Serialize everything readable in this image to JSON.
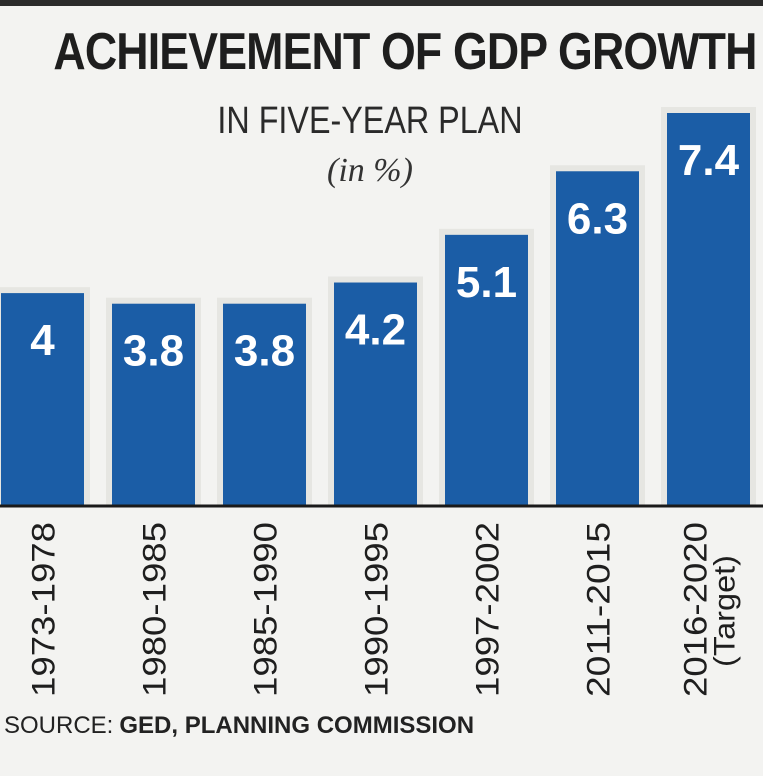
{
  "chart_data": {
    "type": "bar",
    "title": "ACHIEVEMENT OF GDP GROWTH",
    "subtitle": "IN FIVE-YEAR PLAN",
    "unit": "(in %)",
    "categories": [
      "1973-1978",
      "1980-1985",
      "1985-1990",
      "1990-1995",
      "1997-2002",
      "2011-2015",
      "2016-2020"
    ],
    "category_notes": [
      "",
      "",
      "",
      "",
      "",
      "",
      "(Target)"
    ],
    "values": [
      4,
      3.8,
      3.8,
      4.2,
      5.1,
      6.3,
      7.4
    ],
    "value_labels": [
      "4",
      "3.8",
      "3.8",
      "4.2",
      "5.1",
      "6.3",
      "7.4"
    ],
    "ylim": [
      0,
      7.4
    ],
    "grid": false,
    "legend": "none",
    "bar_color": "#1b5da6",
    "label_color": "#ffffff"
  },
  "source": {
    "label": "SOURCE:",
    "value": "GED, PLANNING COMMISSION"
  }
}
